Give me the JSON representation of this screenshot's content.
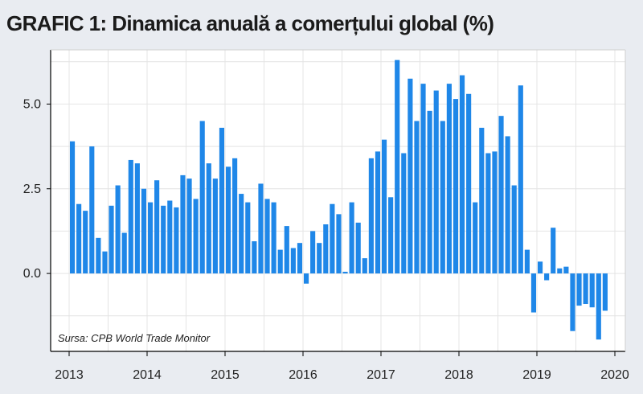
{
  "title": "GRAFIC 1: Dinamica anuală a comerțului global (%)",
  "source": "Sursa: CPB World Trade Monitor",
  "colors": {
    "bar": "#1f87e8",
    "plot_bg": "#ffffff",
    "page_bg": "#e9ecf1",
    "grid": "#e4e4e4"
  },
  "chart_data": {
    "type": "bar",
    "title": "GRAFIC 1: Dinamica anuală a comerțului global (%)",
    "xlabel": "",
    "ylabel": "",
    "ylim": [
      -2.3,
      6.6
    ],
    "yticks": [
      0.0,
      2.5,
      5.0
    ],
    "ytick_labels": [
      "0.0",
      "2.5",
      "5.0"
    ],
    "xticks": [
      2013,
      2014,
      2015,
      2016,
      2017,
      2018,
      2019,
      2020
    ],
    "xtick_labels": [
      "2013",
      "2014",
      "2015",
      "2016",
      "2017",
      "2018",
      "2019",
      "2020"
    ],
    "grid": true,
    "series": [
      {
        "start_year": 2013,
        "frequency": "monthly",
        "values": [
          3.9,
          2.05,
          1.85,
          3.75,
          1.05,
          0.65,
          2.0,
          2.6,
          1.2,
          3.35,
          3.25,
          2.5,
          2.1,
          2.75,
          2.0,
          2.15,
          1.95,
          2.9,
          2.8,
          2.2,
          4.5,
          3.25,
          2.8,
          4.3,
          3.15,
          3.4,
          2.35,
          2.1,
          0.95,
          2.65,
          2.2,
          2.1,
          0.7,
          1.4,
          0.75,
          0.9,
          -0.3,
          1.25,
          0.9,
          1.45,
          2.05,
          1.75,
          0.05,
          2.1,
          1.5,
          0.45,
          3.4,
          3.6,
          3.95,
          2.25,
          6.3,
          3.55,
          5.75,
          4.5,
          5.6,
          4.8,
          5.4,
          4.5,
          5.6,
          5.15,
          5.85,
          5.3,
          2.1,
          4.3,
          3.55,
          3.6,
          4.65,
          4.05,
          2.6,
          5.55,
          0.7,
          -1.15,
          0.35,
          -0.2,
          1.35,
          0.15,
          0.2,
          -1.7,
          -0.95,
          -0.9,
          -1.0,
          -1.95,
          -1.1
        ]
      }
    ]
  }
}
